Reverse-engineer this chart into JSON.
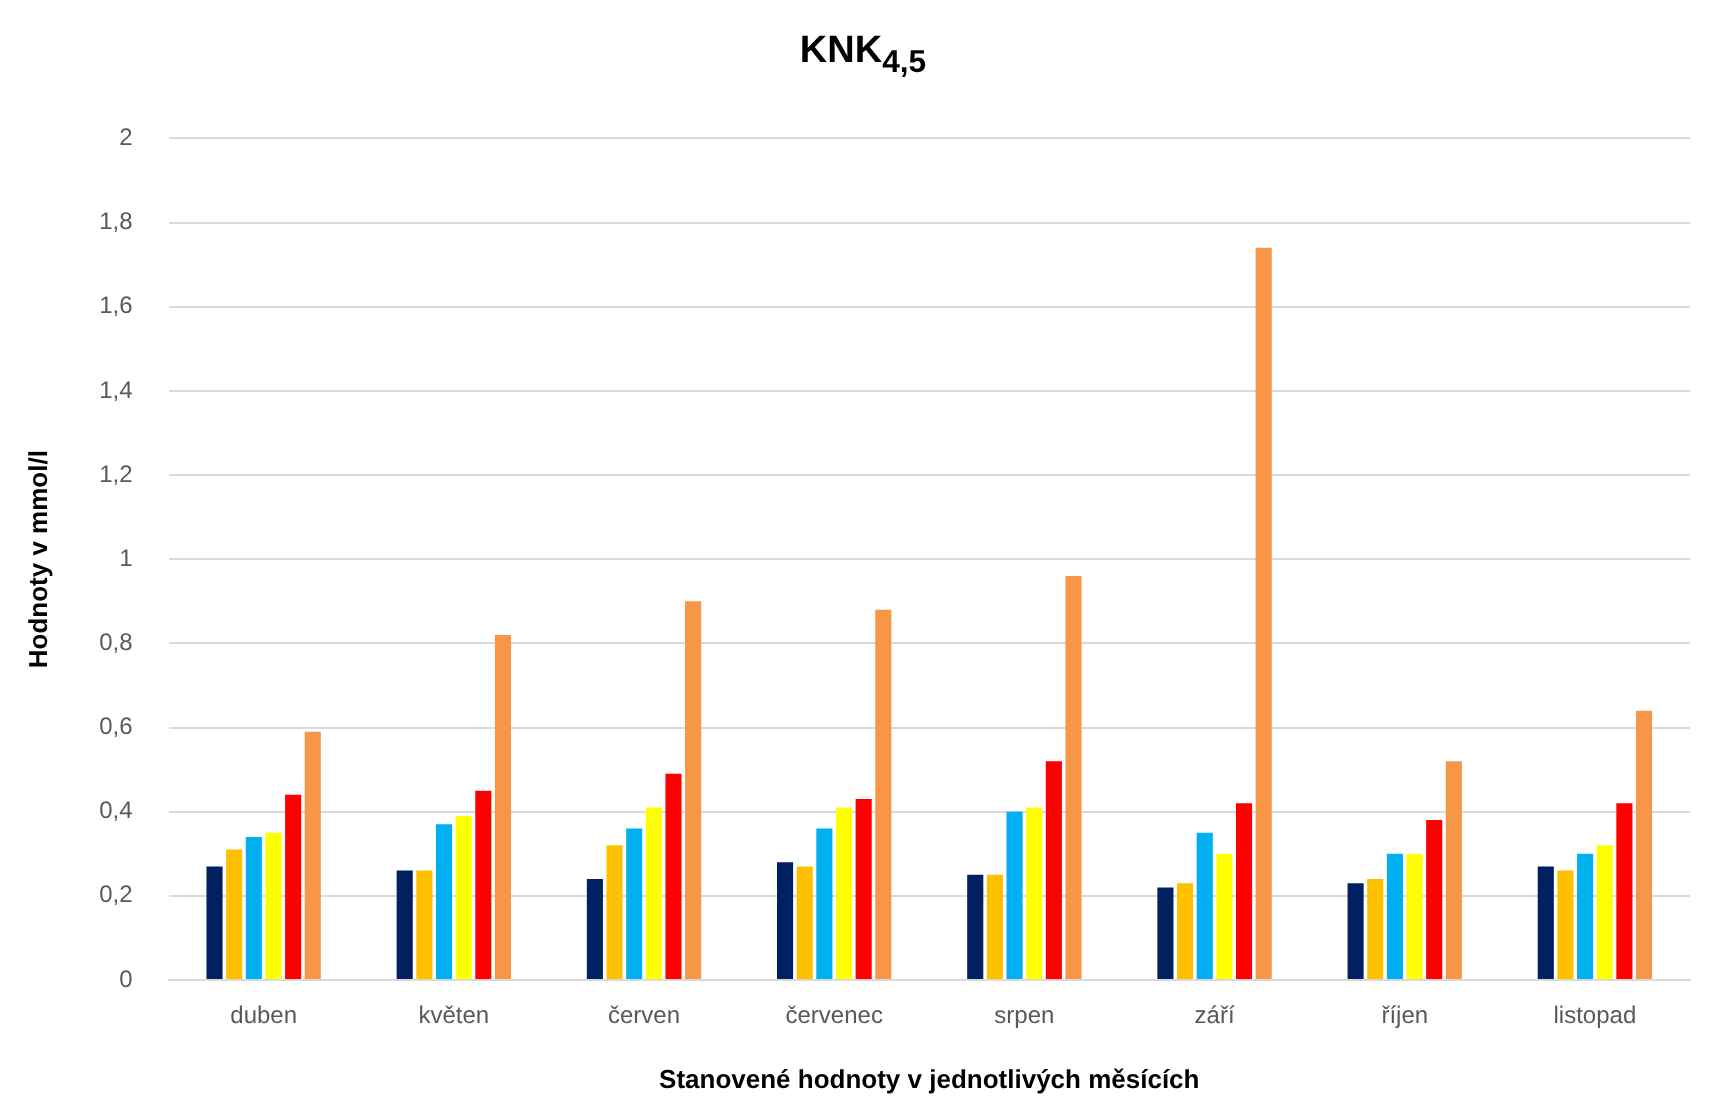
{
  "chart_data": {
    "type": "bar",
    "title": "KNK$_{4,5}$",
    "xlabel": "Stanovené hodnoty v jednotlivých měsících",
    "ylabel": "Hodnoty v mmol/l",
    "categories": [
      "duben",
      "květen",
      "červen",
      "červenec",
      "srpen",
      "září",
      "říjen",
      "listopad"
    ],
    "series": [
      {
        "color": "#002060",
        "values": [
          0.27,
          0.26,
          0.24,
          0.28,
          0.25,
          0.22,
          0.23,
          0.27
        ]
      },
      {
        "color": "#ffc000",
        "values": [
          0.31,
          0.26,
          0.32,
          0.27,
          0.25,
          0.23,
          0.24,
          0.26
        ]
      },
      {
        "color": "#00b0f0",
        "values": [
          0.34,
          0.37,
          0.36,
          0.36,
          0.4,
          0.35,
          0.3,
          0.3
        ]
      },
      {
        "color": "#ffff00",
        "values": [
          0.35,
          0.39,
          0.41,
          0.41,
          0.41,
          0.3,
          0.3,
          0.32
        ]
      },
      {
        "color": "#ff0000",
        "values": [
          0.44,
          0.45,
          0.49,
          0.43,
          0.52,
          0.42,
          0.38,
          0.42
        ]
      },
      {
        "color": "#f79646",
        "values": [
          0.59,
          0.82,
          0.9,
          0.88,
          0.96,
          1.74,
          0.52,
          0.64
        ]
      }
    ],
    "ylim": [
      0,
      2
    ],
    "yticks": [
      0,
      {
        "value": 0.2,
        "label": "0,2"
      },
      {
        "value": 0.4,
        "label": "0,4"
      },
      {
        "value": 0.6,
        "label": "0,6"
      },
      {
        "value": 0.8,
        "label": "0,8"
      },
      1,
      {
        "value": 1.2,
        "label": "1,2"
      },
      {
        "value": 1.4,
        "label": "1,4"
      },
      {
        "value": 1.6,
        "label": "1,6"
      },
      {
        "value": 1.8,
        "label": "1,8"
      },
      2
    ],
    "grid": "y",
    "legend": false
  }
}
